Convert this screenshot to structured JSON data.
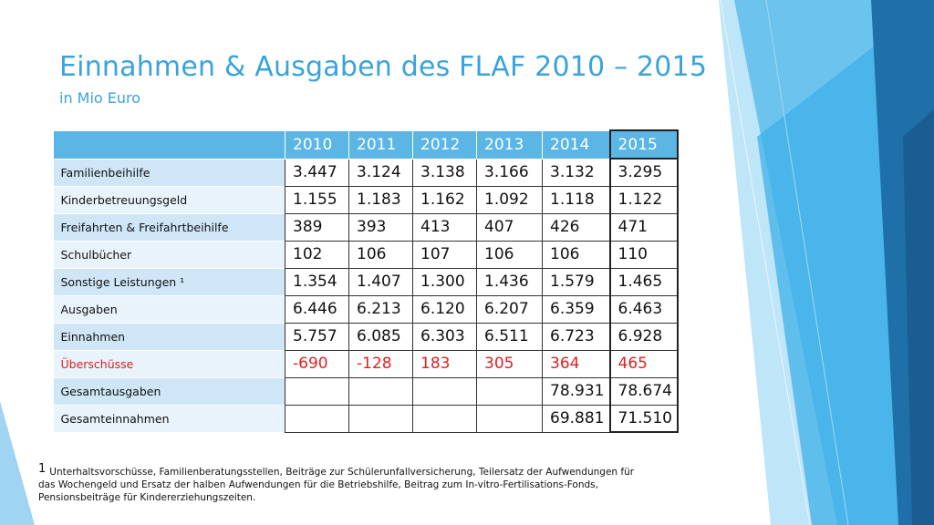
{
  "slide": {
    "title": "Einnahmen & Ausgaben des FLAF 2010 – 2015",
    "subtitle": "in Mio Euro"
  },
  "table": {
    "headers": [
      "",
      "2010",
      "2011",
      "2012",
      "2013",
      "2014",
      "2015"
    ],
    "rows": [
      {
        "label": "Familienbeihilfe",
        "values": [
          "3.447",
          "3.124",
          "3.138",
          "3.166",
          "3.132",
          "3.295"
        ],
        "highlight": false
      },
      {
        "label": "Kinderbetreuungsgeld",
        "values": [
          "1.155",
          "1.183",
          "1.162",
          "1.092",
          "1.118",
          "1.122"
        ],
        "highlight": false
      },
      {
        "label": "Freifahrten & Freifahrtbeihilfe",
        "values": [
          "389",
          "393",
          "413",
          "407",
          "426",
          "471"
        ],
        "highlight": false
      },
      {
        "label": "Schulbücher",
        "values": [
          "102",
          "106",
          "107",
          "106",
          "106",
          "110"
        ],
        "highlight": false
      },
      {
        "label": "Sonstige Leistungen ¹",
        "values": [
          "1.354",
          "1.407",
          "1.300",
          "1.436",
          "1.579",
          "1.465"
        ],
        "highlight": false
      },
      {
        "label": "Ausgaben",
        "values": [
          "6.446",
          "6.213",
          "6.120",
          "6.207",
          "6.359",
          "6.463"
        ],
        "highlight": false
      },
      {
        "label": "Einnahmen",
        "values": [
          "5.757",
          "6.085",
          "6.303",
          "6.511",
          "6.723",
          "6.928"
        ],
        "highlight": false
      },
      {
        "label": "Überschüsse",
        "values": [
          "-690",
          "-128",
          "183",
          "305",
          "364",
          "465"
        ],
        "highlight": true
      },
      {
        "label": "Gesamtausgaben",
        "values": [
          "",
          "",
          "",
          "",
          "78.931",
          "78.674"
        ],
        "highlight": false
      },
      {
        "label": "Gesamteinnahmen",
        "values": [
          "",
          "",
          "",
          "",
          "69.881",
          "71.510"
        ],
        "highlight": false
      }
    ]
  },
  "footnote": {
    "marker": "1",
    "text": "Unterhaltsvorschüsse, Familienberatungsstellen, Beiträge zur Schülerunfallversicherung, Teilersatz  der Aufwendungen für das Wochengeld und Ersatz der halben Aufwendungen für die Betriebshilfe, Beitrag zum In-vitro-Fertilisations-Fonds, Pensionsbeiträge für Kindererziehungszeiten."
  },
  "colors": {
    "accent": "#3aa3d9",
    "header_bg": "#5bb5e5",
    "row_odd": "#cfe6f7",
    "row_even": "#e9f3fb",
    "negative_text": "#e02020"
  }
}
